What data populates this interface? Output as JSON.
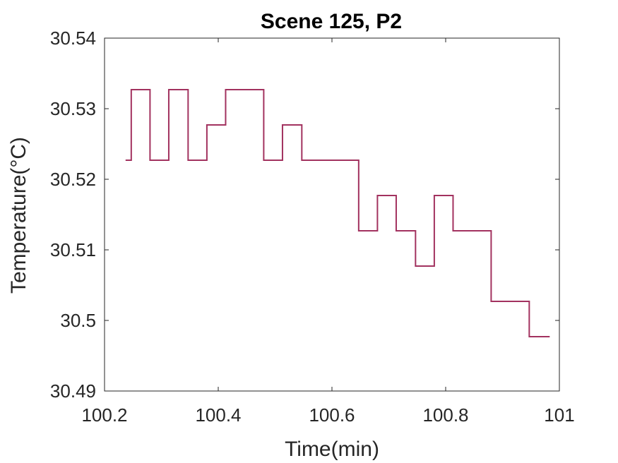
{
  "chart_data": {
    "type": "line",
    "title": "Scene 125, P2",
    "xlabel": "Time(min)",
    "ylabel": "Temperature(°C)",
    "xlim": [
      100.2,
      101
    ],
    "ylim": [
      30.49,
      30.54
    ],
    "xticks": [
      100.2,
      100.4,
      100.6,
      100.8,
      101
    ],
    "xtick_labels": [
      "100.2",
      "100.4",
      "100.6",
      "100.8",
      "101"
    ],
    "yticks": [
      30.49,
      30.5,
      30.51,
      30.52,
      30.53,
      30.54
    ],
    "ytick_labels": [
      "30.49",
      "30.5",
      "30.51",
      "30.52",
      "30.53",
      "30.54"
    ],
    "grid": false,
    "line_style": "step",
    "series": [
      {
        "color": "#A2325F",
        "x": [
          100.237,
          100.247,
          100.28,
          100.313,
          100.347,
          100.38,
          100.413,
          100.48,
          100.513,
          100.547,
          100.647,
          100.68,
          100.713,
          100.747,
          100.78,
          100.813,
          100.88,
          100.947,
          100.983
        ],
        "y": [
          30.5227,
          30.5327,
          30.5227,
          30.5327,
          30.5227,
          30.5277,
          30.5327,
          30.5227,
          30.5277,
          30.5227,
          30.5127,
          30.5177,
          30.5127,
          30.5077,
          30.5177,
          30.5127,
          30.5027,
          30.4977,
          30.4977
        ]
      }
    ]
  }
}
